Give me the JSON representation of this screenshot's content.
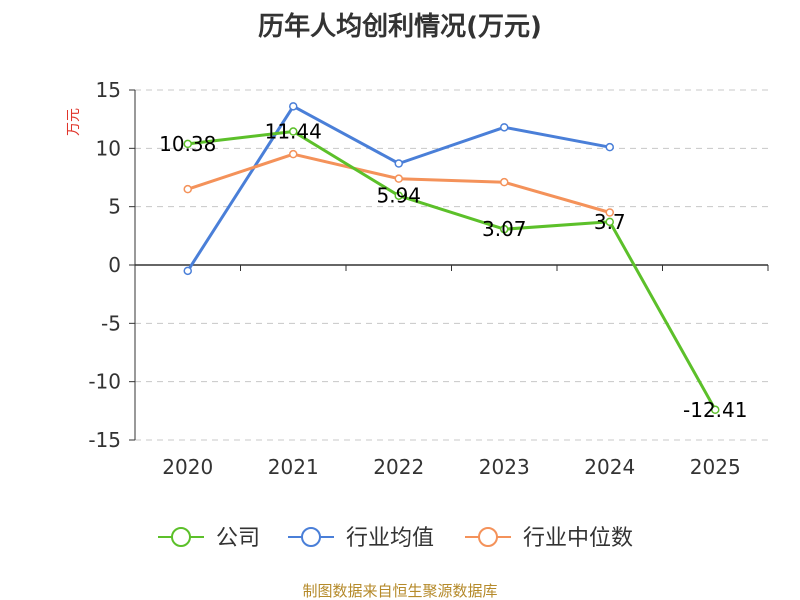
{
  "chart_data": {
    "type": "line",
    "title": "历年人均创利情况(万元)",
    "ylabel": "万元",
    "xlabel": "",
    "categories": [
      "2020",
      "2021",
      "2022",
      "2023",
      "2024",
      "2025"
    ],
    "ylim": [
      -15,
      15
    ],
    "yticks": [
      15,
      10,
      5,
      0,
      -5,
      -10,
      -15
    ],
    "grid": true,
    "legend_position": "bottom",
    "series": [
      {
        "name": "公司",
        "color": "#5cc02a",
        "values": [
          10.38,
          11.44,
          5.94,
          3.07,
          3.7,
          -12.41
        ],
        "labels": [
          "10.38",
          "11.44",
          "5.94",
          "3.07",
          "3.7",
          "-12.41"
        ]
      },
      {
        "name": "行业均值",
        "color": "#4a7fd8",
        "values": [
          -0.5,
          13.6,
          8.7,
          11.8,
          10.1,
          null
        ]
      },
      {
        "name": "行业中位数",
        "color": "#f4925a",
        "values": [
          6.5,
          9.5,
          7.4,
          7.1,
          4.5,
          null
        ]
      }
    ]
  },
  "footer": "制图数据来自恒生聚源数据库"
}
